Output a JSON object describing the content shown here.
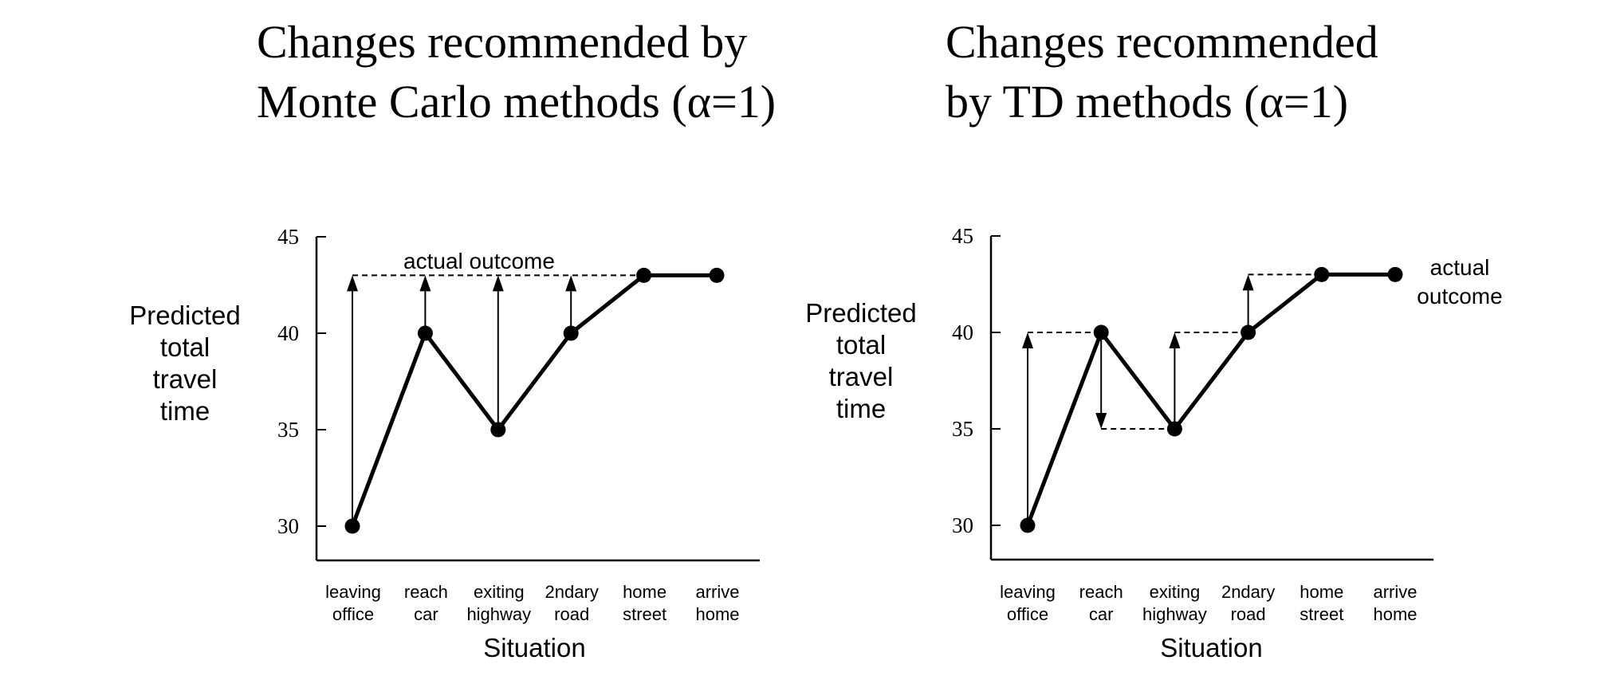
{
  "chart_data": [
    {
      "type": "line",
      "title_lines": [
        "Changes recommended by",
        "Monte Carlo methods (α=1)"
      ],
      "ylabel_lines": [
        "Predicted",
        "total",
        "travel",
        "time"
      ],
      "xlabel": "Situation",
      "categories": [
        [
          "leaving",
          "office"
        ],
        [
          "reach",
          "car"
        ],
        [
          "exiting",
          "highway"
        ],
        [
          "2ndary",
          "road"
        ],
        [
          "home",
          "street"
        ],
        [
          "arrive",
          "home"
        ]
      ],
      "values": [
        30,
        40,
        35,
        40,
        43,
        43
      ],
      "yticks": [
        30,
        35,
        40,
        45
      ],
      "ylim": [
        28,
        45
      ],
      "actual_outcome": 43,
      "annotation_lines": [
        "actual outcome"
      ],
      "arrows": [
        {
          "x_index": 0,
          "from": 30,
          "to": 43
        },
        {
          "x_index": 1,
          "from": 40,
          "to": 43
        },
        {
          "x_index": 2,
          "from": 35,
          "to": 43
        },
        {
          "x_index": 3,
          "from": 40,
          "to": 43
        }
      ],
      "dashed": [
        {
          "from_index": 0,
          "to_index": 5,
          "y": 43
        }
      ],
      "grid": false
    },
    {
      "type": "line",
      "title_lines": [
        "Changes recommended",
        "by TD methods (α=1)"
      ],
      "ylabel_lines": [
        "Predicted",
        "total",
        "travel",
        "time"
      ],
      "xlabel": "Situation",
      "categories": [
        [
          "leaving",
          "office"
        ],
        [
          "reach",
          "car"
        ],
        [
          "exiting",
          "highway"
        ],
        [
          "2ndary",
          "road"
        ],
        [
          "home",
          "street"
        ],
        [
          "arrive",
          "home"
        ]
      ],
      "values": [
        30,
        40,
        35,
        40,
        43,
        43
      ],
      "yticks": [
        30,
        35,
        40,
        45
      ],
      "ylim": [
        28,
        45
      ],
      "actual_outcome": 43,
      "annotation_lines": [
        "actual",
        "outcome"
      ],
      "arrows": [
        {
          "x_index": 0,
          "from": 30,
          "to": 40
        },
        {
          "x_index": 1,
          "from": 40,
          "to": 35
        },
        {
          "x_index": 2,
          "from": 35,
          "to": 40
        },
        {
          "x_index": 3,
          "from": 40,
          "to": 43
        }
      ],
      "dashed": [
        {
          "from_index": 0,
          "to_index": 1,
          "y": 40
        },
        {
          "from_index": 1,
          "to_index": 2,
          "y": 35
        },
        {
          "from_index": 2,
          "to_index": 3,
          "y": 40
        },
        {
          "from_index": 3,
          "to_index": 4,
          "y": 43
        }
      ],
      "grid": false
    }
  ]
}
